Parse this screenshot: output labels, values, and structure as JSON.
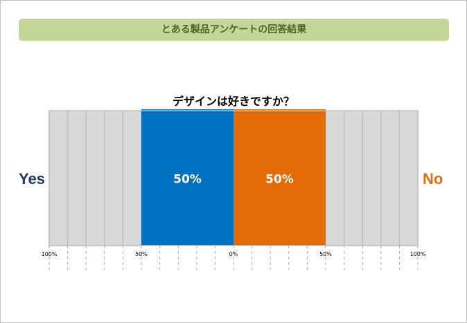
{
  "banner": {
    "title": "とある製品アンケートの回答結果"
  },
  "chart_data": {
    "type": "bar",
    "title": "デザインは好きですか？",
    "orientation": "horizontal-diverging",
    "xlim": [
      -100,
      100
    ],
    "tick_step": 10,
    "tick_labels": [
      {
        "value": -100,
        "label": "100%"
      },
      {
        "value": -50,
        "label": "50%"
      },
      {
        "value": 0,
        "label": "0%"
      },
      {
        "value": 50,
        "label": "50%"
      },
      {
        "value": 100,
        "label": "100%"
      }
    ],
    "series": [
      {
        "name": "Yes",
        "value": 50,
        "label": "50%",
        "color": "#0070c0",
        "direction": "left"
      },
      {
        "name": "No",
        "value": 50,
        "label": "50%",
        "color": "#e36c09",
        "direction": "right"
      }
    ],
    "background_color": "#d9d9d9",
    "grid": true
  },
  "labels": {
    "left": "Yes",
    "right": "No"
  },
  "colors": {
    "yes_label": "#1f3864",
    "no_label": "#e36c09",
    "banner_bg": "#c4d79b",
    "banner_text": "#4f6228"
  }
}
